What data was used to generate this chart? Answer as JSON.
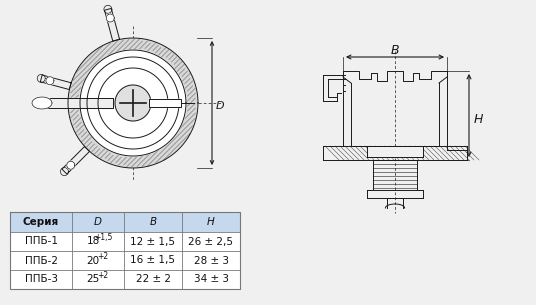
{
  "bg_color": "#f0f0f0",
  "table_header_bg": "#c5d8ed",
  "table_border_color": "#777777",
  "col_headers": [
    "Серия",
    "D",
    "B",
    "H"
  ],
  "rows": [
    [
      "ППБ-1",
      "18",
      "+1,5",
      "12 ± 1,5",
      "26 ± 2,5"
    ],
    [
      "ППБ-2",
      "20",
      "+2",
      "16 ± 1,5",
      "28 ± 3"
    ],
    [
      "ППБ-3",
      "25",
      "+2",
      "22 ± 2",
      "34 ± 3"
    ]
  ],
  "line_color": "#1a1a1a",
  "hatch_color": "#555555",
  "white": "#ffffff",
  "light_gray": "#e8e8e8"
}
